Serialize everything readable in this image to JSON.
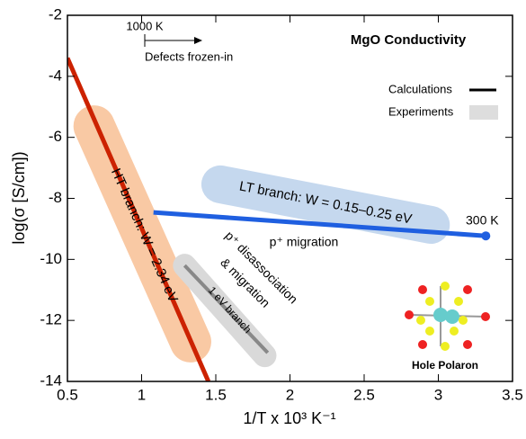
{
  "chart_data": {
    "type": "line",
    "title": "MgO Conductivity",
    "xlabel": "1/T x 10³ K⁻¹",
    "ylabel": "log(σ [S/cm])",
    "xlim": [
      0.5,
      3.5
    ],
    "ylim": [
      -14,
      -2
    ],
    "xticks": [
      0.5,
      1,
      1.5,
      2,
      2.5,
      3,
      3.5
    ],
    "yticks": [
      -14,
      -12,
      -10,
      -8,
      -6,
      -4,
      -2
    ],
    "series": [
      {
        "color": "#cc2200",
        "x": [
          0.5,
          1.45
        ],
        "values": [
          -3.4,
          -14
        ]
      },
      {
        "color": "#1f5fe0",
        "x": [
          1.08,
          3.32
        ],
        "values": [
          -8.46,
          -9.23
        ]
      },
      {
        "color": "#888888",
        "x": [
          1.29,
          1.85
        ],
        "values": [
          -10.2,
          -13.06
        ]
      }
    ],
    "bands": [
      {
        "color": "#f9c9a4",
        "x": [
          0.68,
          1.33
        ],
        "values": [
          -5.63,
          -12.7
        ]
      },
      {
        "color": "#c5d8ee",
        "x": [
          1.53,
          2.95
        ],
        "values": [
          -7.54,
          -8.87
        ]
      },
      {
        "color": "#d9d9d9",
        "x": [
          1.29,
          1.83
        ],
        "values": [
          -10.2,
          -13.15
        ]
      }
    ],
    "legend": [
      {
        "label": "Calculations",
        "color": "#000000"
      },
      {
        "label": "Experiments",
        "color": "#dddddd"
      }
    ],
    "annotations": [
      "1000 K",
      "Defects frozen-in",
      "HT branch: W = 2.34 eV",
      "LT branch: W = 0.15–0.25 eV",
      "300 K",
      "p⁺ migration",
      "p⁺ disassociation",
      "& migration",
      "1 eV branch",
      "Hole Polaron"
    ]
  }
}
